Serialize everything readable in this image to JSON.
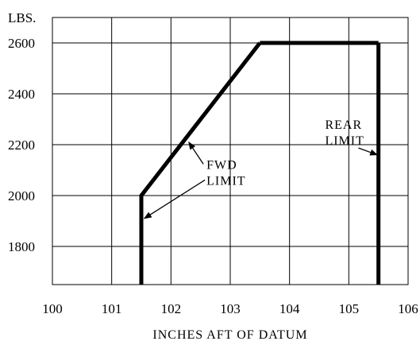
{
  "chart_data": {
    "type": "line",
    "title": "",
    "xlabel": "INCHES AFT OF DATUM",
    "ylabel": "LBS.",
    "xlim": [
      100,
      106
    ],
    "ylim": [
      1650,
      2700
    ],
    "x_ticks": [
      100,
      101,
      102,
      103,
      104,
      105,
      106
    ],
    "y_ticks": [
      1800,
      2000,
      2200,
      2400,
      2600
    ],
    "grid": true,
    "envelope": {
      "forward_limit": [
        [
          101.5,
          1650
        ],
        [
          101.5,
          2000
        ],
        [
          103.5,
          2600
        ]
      ],
      "top_limit": [
        [
          103.5,
          2600
        ],
        [
          105.5,
          2600
        ]
      ],
      "rear_limit": [
        [
          105.5,
          2600
        ],
        [
          105.5,
          1650
        ]
      ]
    },
    "annotations": [
      {
        "id": "fwd",
        "lines": [
          "FWD",
          "LIMIT"
        ],
        "x": 102.6,
        "y": 2105,
        "pointers": [
          [
            102.3,
            2210
          ],
          [
            101.55,
            1910
          ]
        ]
      },
      {
        "id": "rear",
        "lines": [
          "REAR",
          "LIMIT"
        ],
        "x": 104.6,
        "y": 2262,
        "pointers": [
          [
            105.48,
            2160
          ]
        ]
      }
    ]
  }
}
